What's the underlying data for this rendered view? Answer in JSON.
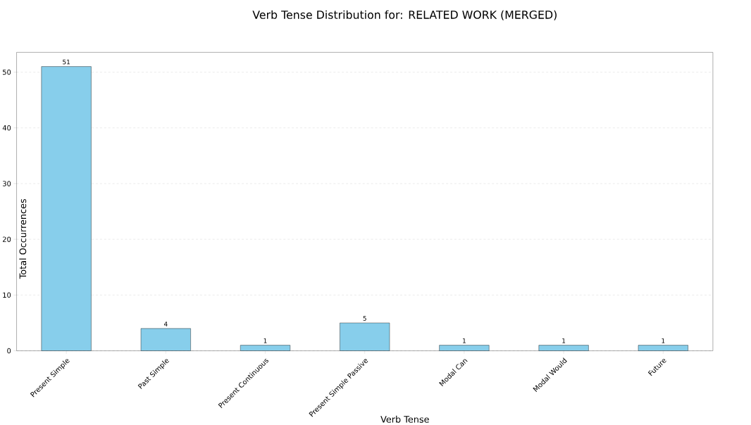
{
  "chart_data": {
    "type": "bar",
    "title": "Verb Tense Distribution for: RELATED WORK (MERGED)",
    "xlabel": "Verb Tense",
    "ylabel": "Total Occurrences",
    "categories": [
      "Present Simple",
      "Past Simple",
      "Present Continuous",
      "Present Simple Passive",
      "Modal Can",
      "Modal Would",
      "Future"
    ],
    "values": [
      51,
      4,
      1,
      5,
      1,
      1,
      1
    ],
    "color": "#87ceeb",
    "ylim": [
      0,
      53.55
    ],
    "yticks": [
      0,
      10,
      20,
      30,
      40,
      50
    ],
    "grid": "y",
    "data_labels": true
  }
}
